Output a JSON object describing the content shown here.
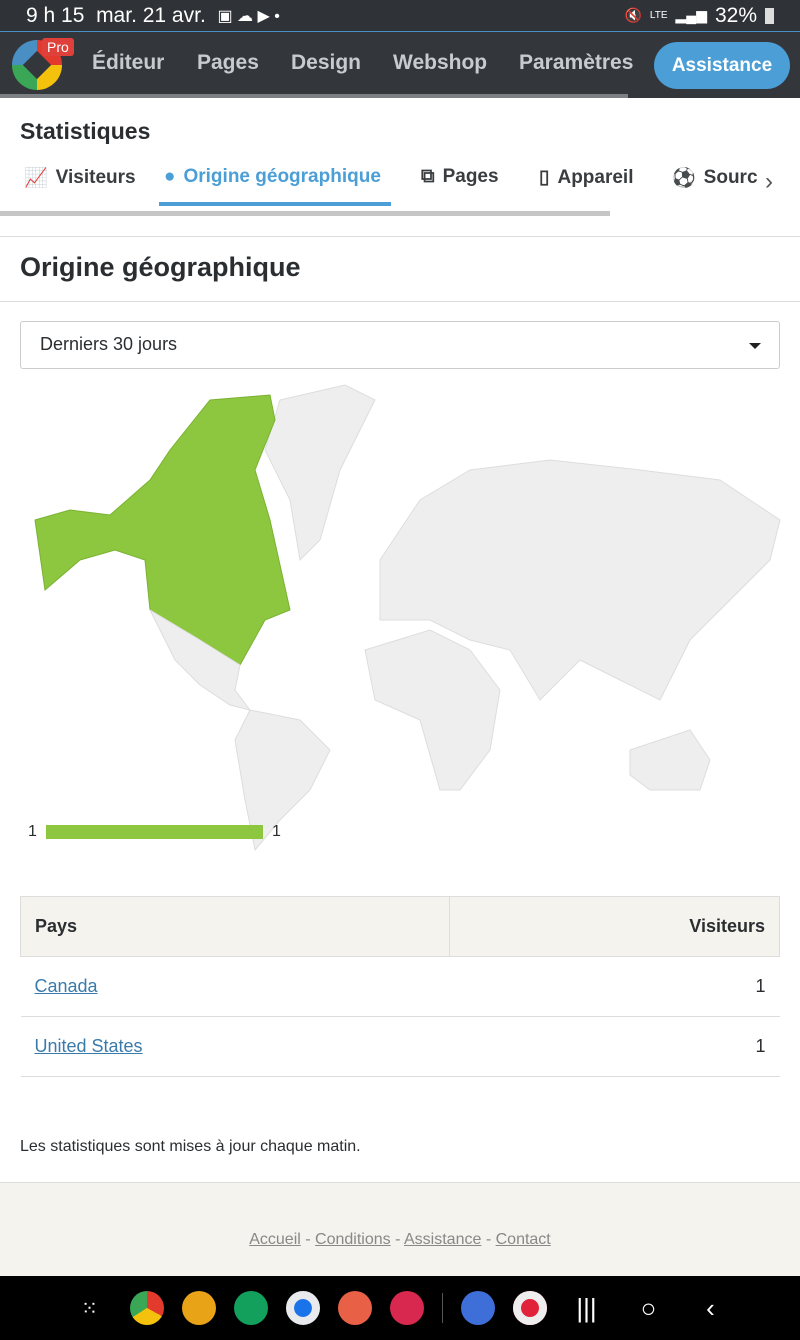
{
  "status": {
    "time": "9 h 15",
    "date": "mar. 21 avr.",
    "network": "LTE",
    "battery": "32%"
  },
  "nav": {
    "badge": "Pro",
    "items": [
      "Éditeur",
      "Pages",
      "Design",
      "Webshop",
      "Paramètres"
    ],
    "assistance": "Assistance"
  },
  "stats": {
    "title": "Statistiques",
    "tabs": [
      {
        "label": "Visiteurs",
        "icon": "chart-line-icon"
      },
      {
        "label": "Origine géographique",
        "icon": "globe-icon",
        "active": true
      },
      {
        "label": "Pages",
        "icon": "copy-icon"
      },
      {
        "label": "Appareil",
        "icon": "mobile-icon"
      },
      {
        "label": "Sourc",
        "icon": "soccer-ball-icon"
      }
    ]
  },
  "section": {
    "title": "Origine géographique",
    "period": "Derniers 30 jours"
  },
  "map": {
    "highlight_color": "#8dc63f",
    "base_color": "#eeeeee",
    "highlighted": [
      "Canada",
      "United States"
    ],
    "legend_min": "1",
    "legend_max": "1"
  },
  "table": {
    "headers": [
      "Pays",
      "Visiteurs"
    ],
    "rows": [
      {
        "country": "Canada",
        "visitors": "1"
      },
      {
        "country": "United States",
        "visitors": "1"
      }
    ]
  },
  "note": "Les statistiques sont mises à jour chaque matin.",
  "footer": {
    "links": [
      "Accueil",
      "Conditions",
      "Assistance",
      "Contact"
    ],
    "sep": "-"
  },
  "dock": {
    "sys": [
      "|||",
      "○",
      "‹"
    ]
  }
}
